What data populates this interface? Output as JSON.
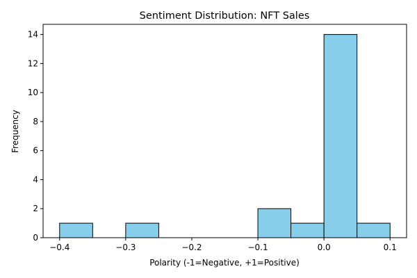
{
  "chart_data": {
    "type": "bar",
    "title": "Sentiment Distribution: NFT Sales",
    "xlabel": "Polarity (-1=Negative, +1=Positive)",
    "ylabel": "Frequency",
    "xlim": [
      -0.425,
      0.125
    ],
    "ylim": [
      0,
      14.7
    ],
    "x_ticks": [
      -0.4,
      -0.3,
      -0.2,
      -0.1,
      0.0,
      0.1
    ],
    "x_tick_labels": [
      "−0.4",
      "−0.3",
      "−0.2",
      "−0.1",
      "0.0",
      "0.1"
    ],
    "y_ticks": [
      0,
      2,
      4,
      6,
      8,
      10,
      12,
      14
    ],
    "y_tick_labels": [
      "0",
      "2",
      "4",
      "6",
      "8",
      "10",
      "12",
      "14"
    ],
    "grid": false,
    "bar_color": "#87ceeb",
    "bar_edge_color": "#000000",
    "bins": [
      {
        "x0": -0.4,
        "x1": -0.35,
        "count": 1
      },
      {
        "x0": -0.35,
        "x1": -0.3,
        "count": 0
      },
      {
        "x0": -0.3,
        "x1": -0.25,
        "count": 1
      },
      {
        "x0": -0.25,
        "x1": -0.2,
        "count": 0
      },
      {
        "x0": -0.2,
        "x1": -0.15,
        "count": 0
      },
      {
        "x0": -0.15,
        "x1": -0.1,
        "count": 0
      },
      {
        "x0": -0.1,
        "x1": -0.05,
        "count": 2
      },
      {
        "x0": -0.05,
        "x1": 0.0,
        "count": 1
      },
      {
        "x0": 0.0,
        "x1": 0.05,
        "count": 14
      },
      {
        "x0": 0.05,
        "x1": 0.1,
        "count": 1
      }
    ]
  }
}
